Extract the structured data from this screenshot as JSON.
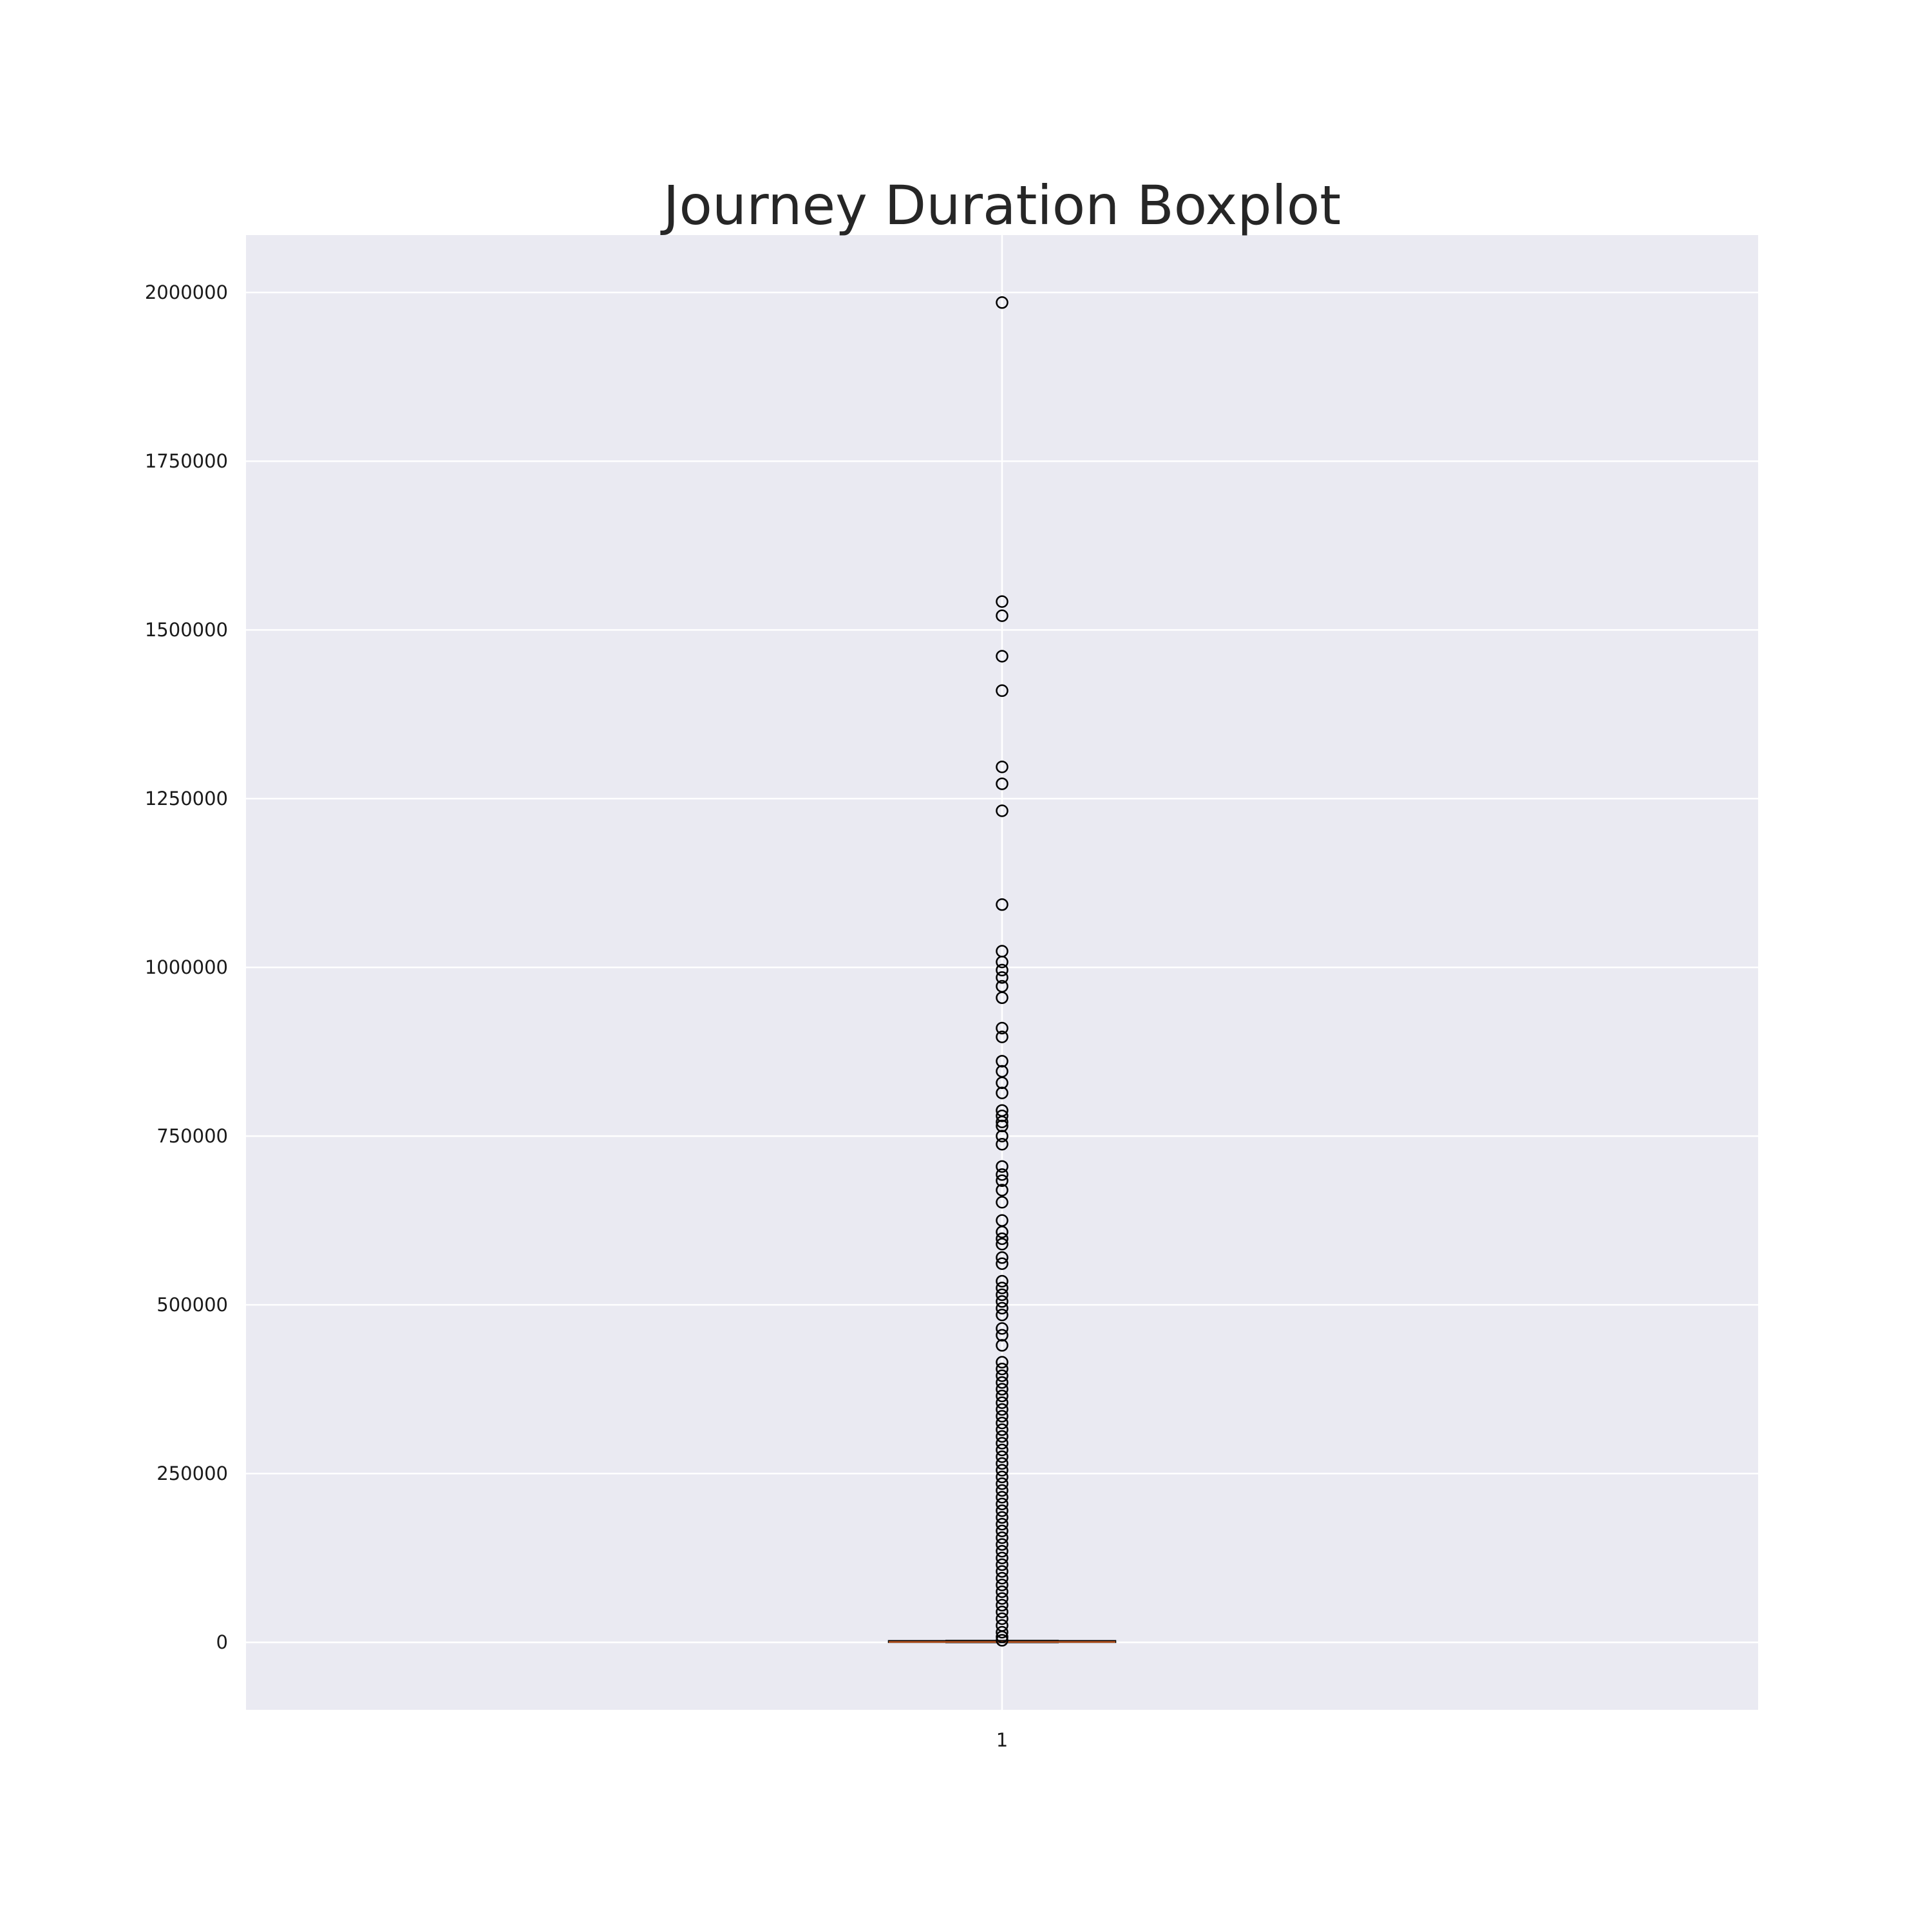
{
  "chart_data": {
    "type": "boxplot",
    "title": "Journey Duration Boxplot",
    "xlabel": "",
    "ylabel": "",
    "categories": [
      "1"
    ],
    "ylim": [
      -100000,
      2085000
    ],
    "yticks": [
      0,
      250000,
      500000,
      750000,
      1000000,
      1250000,
      1500000,
      1750000,
      2000000
    ],
    "ytick_labels": [
      "0",
      "250000",
      "500000",
      "750000",
      "1000000",
      "1250000",
      "1500000",
      "1750000",
      "2000000"
    ],
    "grid": true,
    "legend": "none",
    "box": {
      "category": "1",
      "whisker_low": 0,
      "q1": 300,
      "median": 600,
      "q3": 1200,
      "whisker_high": 2500
    },
    "outliers": [
      1985000,
      1542000,
      1521000,
      1461000,
      1410000,
      1297000,
      1272000,
      1232000,
      1093000,
      1024000,
      1008000,
      996000,
      985000,
      972000,
      955000,
      910000,
      897000,
      861000,
      846000,
      829000,
      814000,
      788000,
      780000,
      771000,
      765000,
      750000,
      738000,
      705000,
      693000,
      684000,
      670000,
      652000,
      625000,
      608000,
      598000,
      590000,
      570000,
      561000,
      535000,
      525000,
      515000,
      505000,
      495000,
      485000,
      465000,
      455000,
      440000,
      415000,
      405000,
      395000,
      385000,
      375000,
      365000,
      355000,
      345000,
      335000,
      325000,
      315000,
      305000,
      295000,
      285000,
      275000,
      265000,
      255000,
      245000,
      235000,
      225000,
      215000,
      205000,
      195000,
      185000,
      175000,
      165000,
      155000,
      145000,
      135000,
      125000,
      115000,
      105000,
      95000,
      85000,
      75000,
      65000,
      55000,
      45000,
      35000,
      25000,
      15000,
      8000,
      3000
    ],
    "colors": {
      "page_background": "#ffffff",
      "plot_background": "#eaeaf2",
      "grid": "#ffffff",
      "box": "#000000",
      "median": "#c05a24",
      "outlier_edge": "#000000",
      "text": "#1a1a1a",
      "title": "#262626"
    }
  }
}
